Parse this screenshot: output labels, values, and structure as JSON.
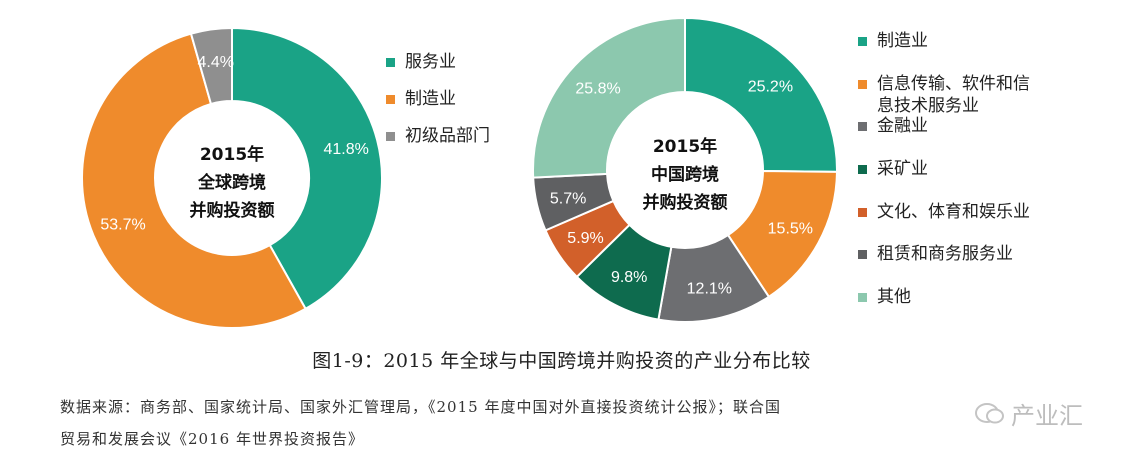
{
  "chart_data": [
    {
      "type": "pie",
      "variant": "donut",
      "center_title": [
        "2015年",
        "全球跨境",
        "并购投资额"
      ],
      "slices": [
        {
          "label": "服务业",
          "value": 41.8,
          "display": "41.8%",
          "color": "#1aa386"
        },
        {
          "label": "制造业",
          "value": 53.7,
          "display": "53.7%",
          "color": "#ef8b2c"
        },
        {
          "label": "初级品部门",
          "value": 4.4,
          "display": "4.4%",
          "color": "#8f8f8f"
        }
      ],
      "legend": [
        "服务业",
        "制造业",
        "初级品部门"
      ],
      "legend_position": "right"
    },
    {
      "type": "pie",
      "variant": "donut",
      "center_title": [
        "2015年",
        "中国跨境",
        "并购投资额"
      ],
      "slices": [
        {
          "label": "制造业",
          "value": 25.2,
          "display": "25.2%",
          "color": "#1aa386"
        },
        {
          "label": "信息传输、软件和信\n息技术服务业",
          "value": 15.5,
          "display": "15.5%",
          "color": "#ef8b2c"
        },
        {
          "label": "金融业",
          "value": 12.1,
          "display": "12.1%",
          "color": "#6d6e71"
        },
        {
          "label": "采矿业",
          "value": 9.8,
          "display": "9.8%",
          "color": "#0e6b4e"
        },
        {
          "label": "文化、体育和娱乐业",
          "value": 5.9,
          "display": "5.9%",
          "color": "#d2602a"
        },
        {
          "label": "租赁和商务服务业",
          "value": 5.7,
          "display": "5.7%",
          "color": "#5f6062"
        },
        {
          "label": "其他",
          "value": 25.8,
          "display": "25.8%",
          "color": "#8cc8ae"
        }
      ],
      "legend": [
        "制造业",
        "信息传输、软件和信\n息技术服务业",
        "金融业",
        "采矿业",
        "文化、体育和娱乐业",
        "租赁和商务服务业",
        "其他"
      ],
      "legend_position": "right"
    }
  ],
  "caption": "图1-9：2015 年全球与中国跨境并购投资的产业分布比较",
  "source_line1": "数据来源：商务部、国家统计局、国家外汇管理局，《2015 年度中国对外直接投资统计公报》；联合国",
  "source_line2": "贸易和发展会议《2016 年世界投资报告》",
  "watermark_text": "产业汇",
  "colors": {
    "label_on_dark": "#ffffff",
    "center_text": "#111111"
  }
}
